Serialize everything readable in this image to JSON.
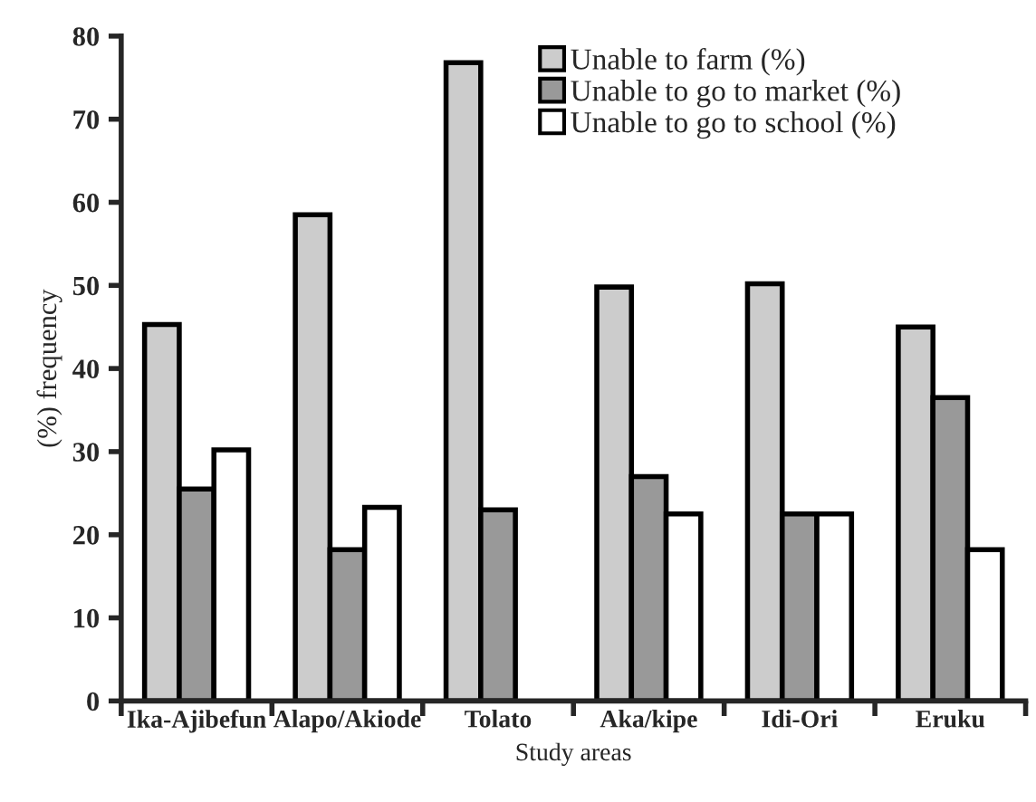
{
  "chart_data": {
    "type": "bar",
    "xlabel": "Study areas",
    "ylabel": "(%) frequency",
    "categories": [
      "Ika-Ajibefun",
      "Alapo/Akiode",
      "Tolato",
      "Aka/kipe",
      "Idi-Ori",
      "Eruku"
    ],
    "series": [
      {
        "name": "Unable to farm (%)",
        "color": "#cccccc",
        "values": [
          45.3,
          58.5,
          76.8,
          49.8,
          50.2,
          45.0
        ]
      },
      {
        "name": "Unable to go to market (%)",
        "color": "#999999",
        "values": [
          25.5,
          18.2,
          23.0,
          27.0,
          22.5,
          36.5
        ]
      },
      {
        "name": "Unable to go to school (%)",
        "color": "#ffffff",
        "values": [
          30.2,
          23.3,
          null,
          22.5,
          22.5,
          18.2
        ]
      }
    ],
    "ylim": [
      0,
      80
    ],
    "yticks": [
      0,
      10,
      20,
      30,
      40,
      50,
      60,
      70,
      80
    ],
    "grid": false,
    "legend": "top right"
  }
}
